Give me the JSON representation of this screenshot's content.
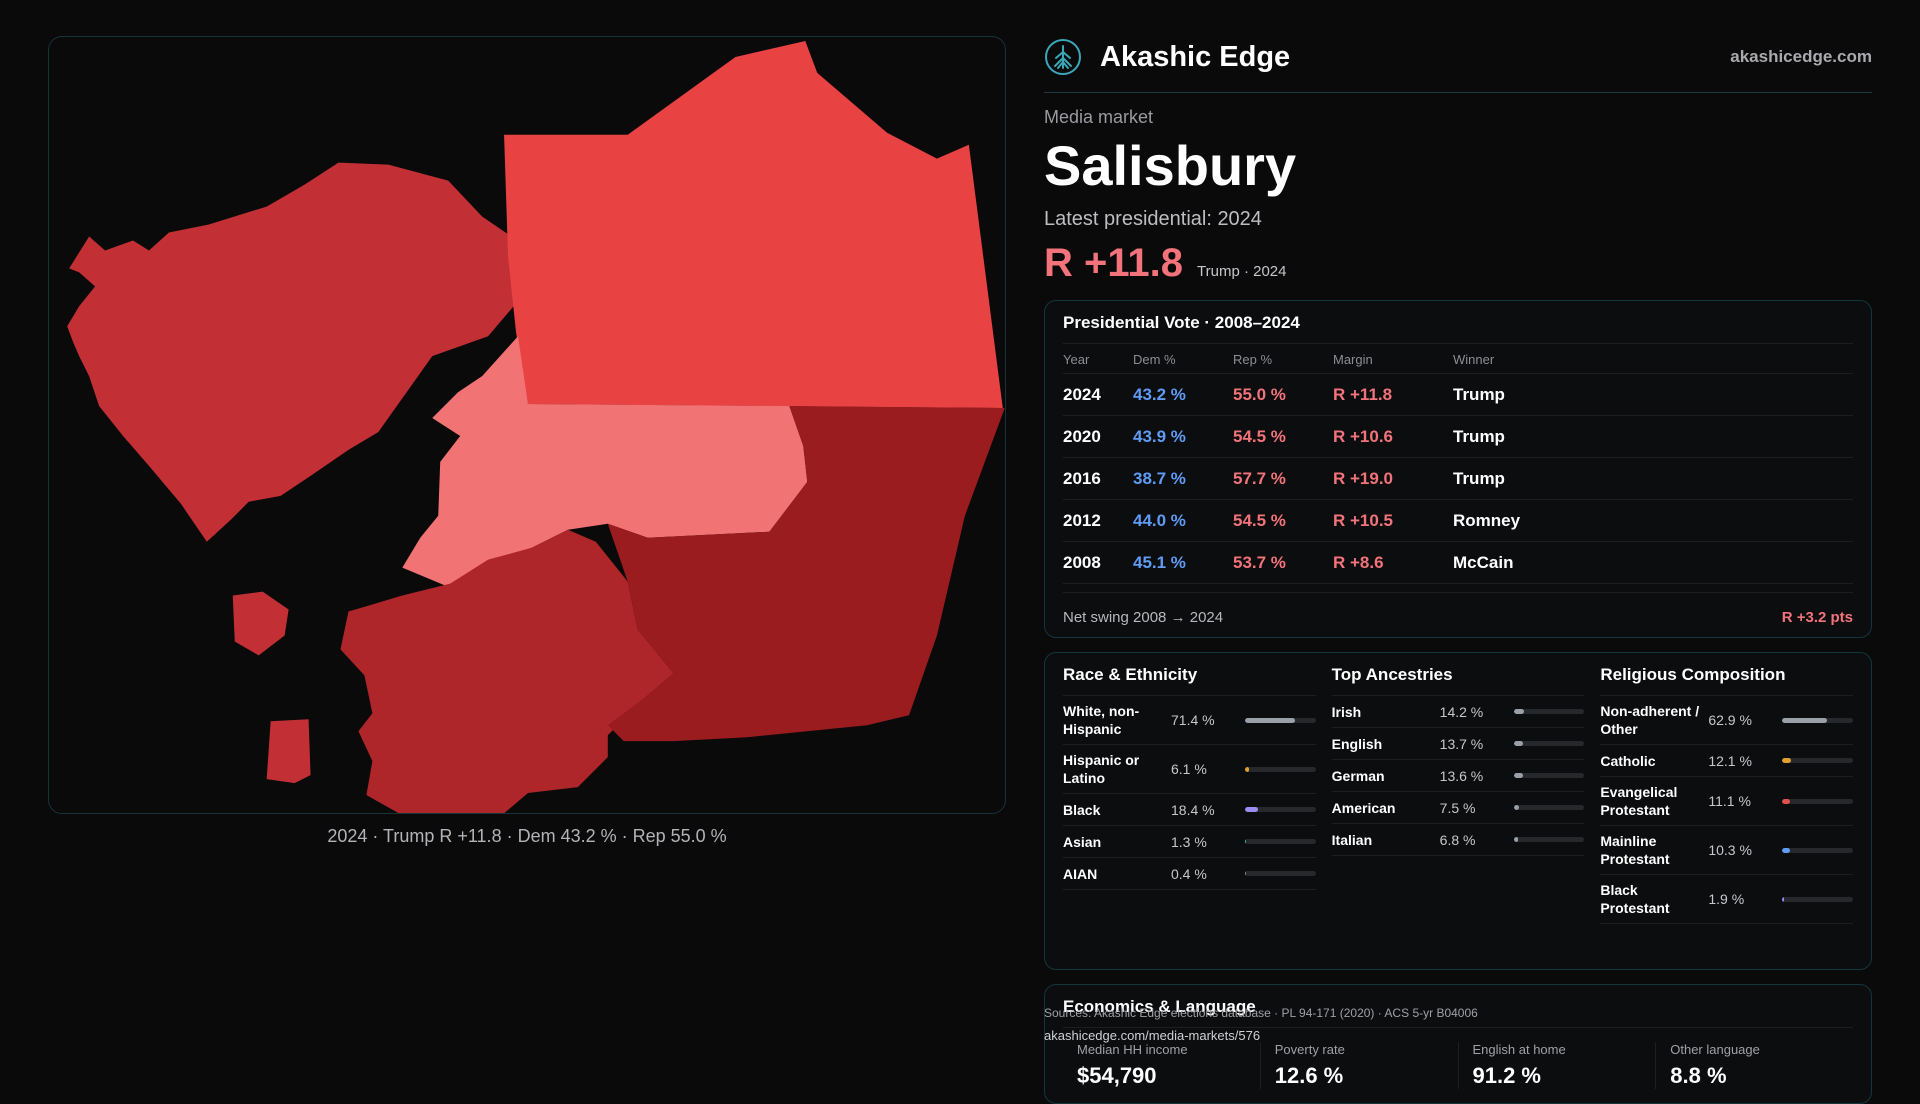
{
  "map": {
    "caption": "2024 · Trump R +11.8 · Dem 43.2 % · Rep 55.0 %",
    "colors": {
      "r1": "#c23035",
      "r2": "#e94243",
      "r3": "#f27373",
      "r4": "#ae262a",
      "r5": "#9a1c1f"
    }
  },
  "header": {
    "brand": "Akashic Edge",
    "url": "akashicedge.com",
    "logo_icon": "tree-icon"
  },
  "market": {
    "kicker": "Media market",
    "title": "Salisbury",
    "latest_label": "Latest presidential: 2024",
    "margin": "R +11.8",
    "margin_sub": "Trump · 2024"
  },
  "vote": {
    "title": "Presidential Vote · 2008–2024",
    "columns": [
      "Year",
      "Dem %",
      "Rep %",
      "Margin",
      "Winner"
    ],
    "rows": [
      {
        "year": "2024",
        "dem": "43.2 %",
        "rep": "55.0 %",
        "margin": "R +11.8",
        "winner": "Trump"
      },
      {
        "year": "2020",
        "dem": "43.9 %",
        "rep": "54.5 %",
        "margin": "R +10.6",
        "winner": "Trump"
      },
      {
        "year": "2016",
        "dem": "38.7 %",
        "rep": "57.7 %",
        "margin": "R +19.0",
        "winner": "Trump"
      },
      {
        "year": "2012",
        "dem": "44.0 %",
        "rep": "54.5 %",
        "margin": "R +10.5",
        "winner": "Romney"
      },
      {
        "year": "2008",
        "dem": "45.1 %",
        "rep": "53.7 %",
        "margin": "R +8.6",
        "winner": "McCain"
      }
    ],
    "swing_label": "Net swing 2008 → 2024",
    "swing_value": "R +3.2 pts"
  },
  "race": {
    "title": "Race & Ethnicity",
    "items": [
      {
        "label": "White, non-Hispanic",
        "value": "71.4 %",
        "pct": 71.4,
        "color": "#9aa0a8"
      },
      {
        "label": "Hispanic or Latino",
        "value": "6.1 %",
        "pct": 6.1,
        "color": "#e0a030"
      },
      {
        "label": "Black",
        "value": "18.4 %",
        "pct": 18.4,
        "color": "#9a8cf0"
      },
      {
        "label": "Asian",
        "value": "1.3 %",
        "pct": 1.3,
        "color": "#30c0a0"
      },
      {
        "label": "AIAN",
        "value": "0.4 %",
        "pct": 0.4,
        "color": "#8a8a90"
      }
    ]
  },
  "ancestry": {
    "title": "Top Ancestries",
    "items": [
      {
        "label": "Irish",
        "value": "14.2 %",
        "pct": 14.2,
        "color": "#9aa0a8"
      },
      {
        "label": "English",
        "value": "13.7 %",
        "pct": 13.7,
        "color": "#9aa0a8"
      },
      {
        "label": "German",
        "value": "13.6 %",
        "pct": 13.6,
        "color": "#9aa0a8"
      },
      {
        "label": "American",
        "value": "7.5 %",
        "pct": 7.5,
        "color": "#9aa0a8"
      },
      {
        "label": "Italian",
        "value": "6.8 %",
        "pct": 6.8,
        "color": "#9aa0a8"
      }
    ]
  },
  "religion": {
    "title": "Religious Composition",
    "items": [
      {
        "label": "Non-adherent / Other",
        "value": "62.9 %",
        "pct": 62.9,
        "color": "#9aa0a8"
      },
      {
        "label": "Catholic",
        "value": "12.1 %",
        "pct": 12.1,
        "color": "#e0a030"
      },
      {
        "label": "Evangelical Protestant",
        "value": "11.1 %",
        "pct": 11.1,
        "color": "#e05050"
      },
      {
        "label": "Mainline Protestant",
        "value": "10.3 %",
        "pct": 10.3,
        "color": "#5f9cf5"
      },
      {
        "label": "Black Protestant",
        "value": "1.9 %",
        "pct": 1.9,
        "color": "#9a8cf0"
      }
    ]
  },
  "econ": {
    "title": "Economics & Language",
    "items": [
      {
        "label": "Median HH income",
        "value": "$54,790"
      },
      {
        "label": "Poverty rate",
        "value": "12.6 %"
      },
      {
        "label": "English at home",
        "value": "91.2 %"
      },
      {
        "label": "Other language",
        "value": "8.8 %"
      }
    ]
  },
  "sources": {
    "text": "Sources: Akashic Edge elections database · PL 94-171 (2020) · ACS 5-yr B04006",
    "url": "akashicedge.com/media-markets/576"
  }
}
